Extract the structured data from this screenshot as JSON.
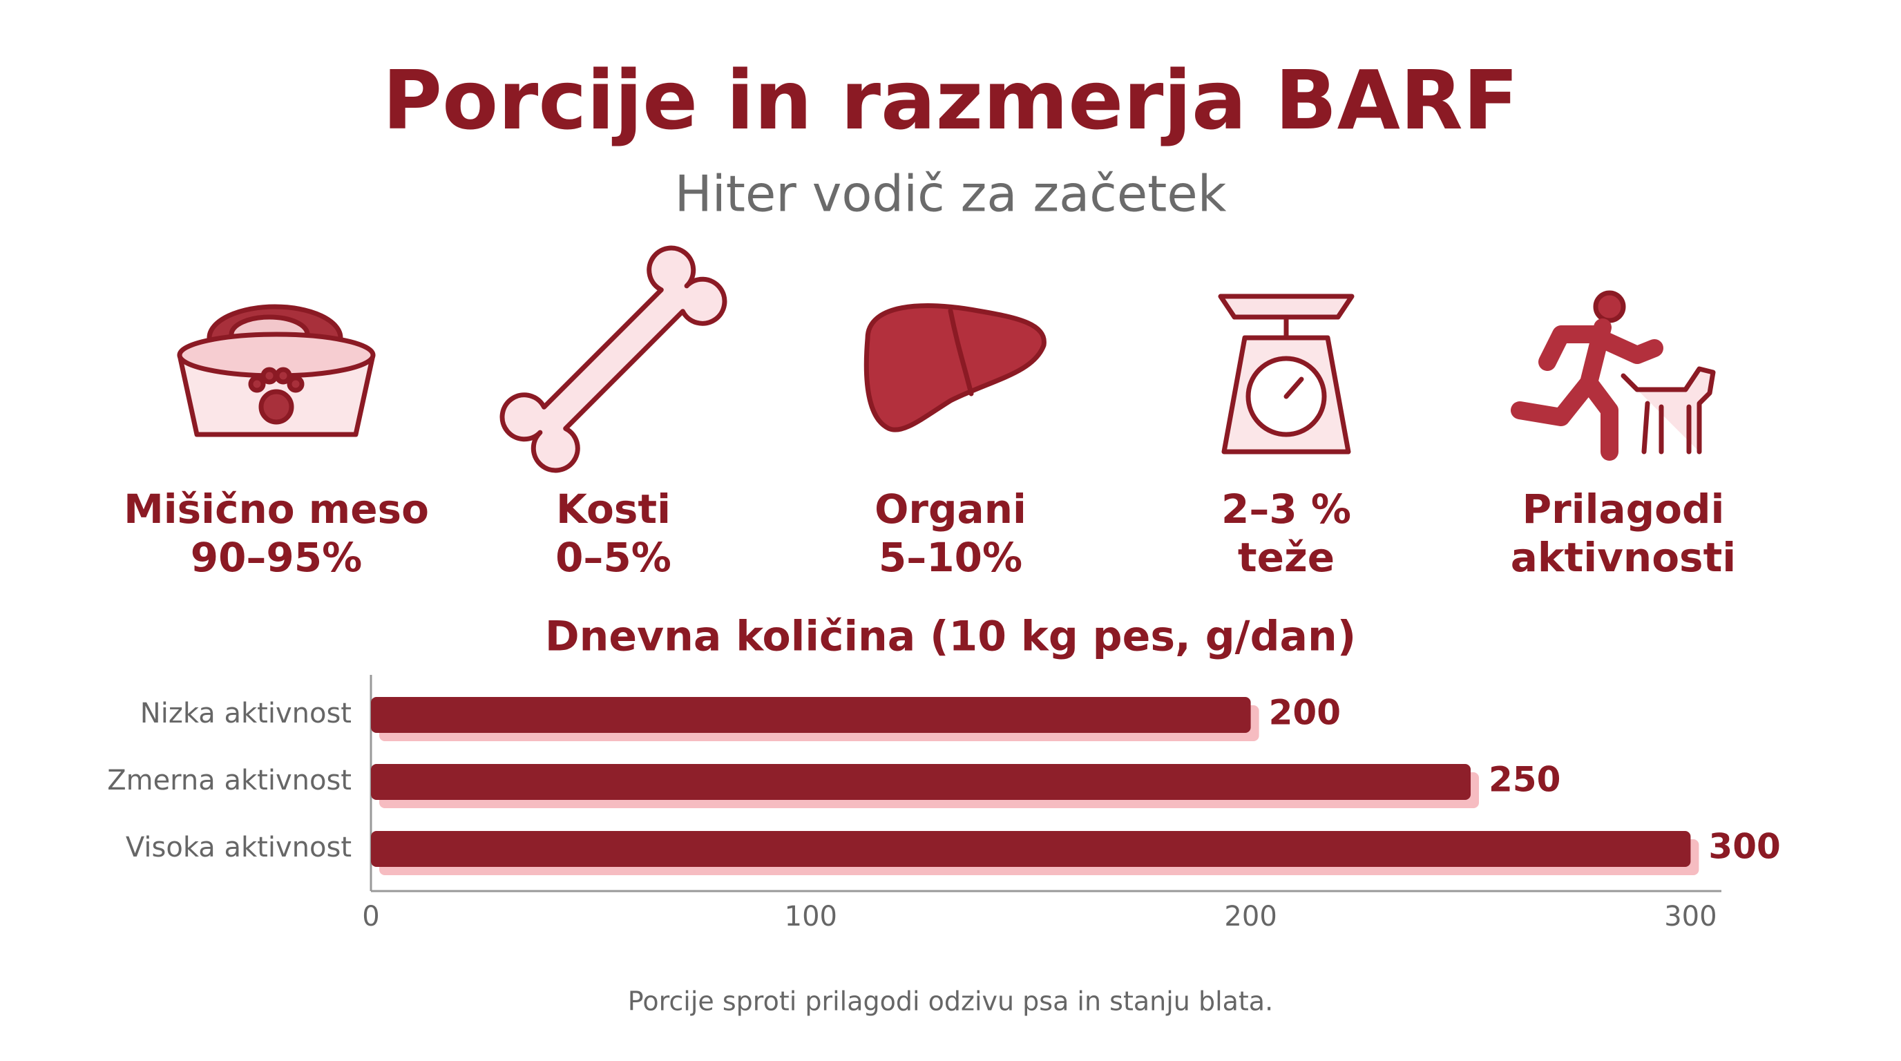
{
  "header": {
    "title": "Porcije in razmerja BARF",
    "subtitle": "Hiter vodič za začetek"
  },
  "items": [
    {
      "lines": [
        "Mišično meso",
        "90–95%"
      ]
    },
    {
      "lines": [
        "Kosti",
        "0–5%"
      ]
    },
    {
      "lines": [
        "Organi",
        "5–10%"
      ]
    },
    {
      "lines": [
        "2–3 %",
        "teže"
      ]
    },
    {
      "lines": [
        "Prilagodi",
        "aktivnosti"
      ]
    }
  ],
  "chart_data": {
    "type": "hbar",
    "title": "Dnevna količina (10 kg pes, g/dan)",
    "categories": [
      "Nizka aktivnost",
      "Zmerna aktivnost",
      "Visoka aktivnost"
    ],
    "values": [
      200,
      250,
      300
    ],
    "color": "#8e1f2a",
    "shadow_color": "#f6bcc1",
    "xlim": [
      0,
      307
    ],
    "xticks": [
      0,
      100,
      200,
      300
    ]
  },
  "footer": "Porcije sproti prilagodi odzivu psa in stanju blata."
}
